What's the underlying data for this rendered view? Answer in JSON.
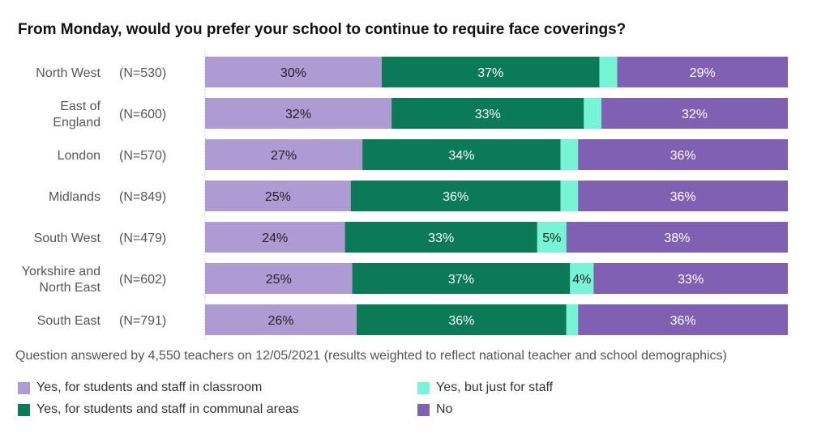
{
  "chart_data": {
    "type": "bar",
    "orientation": "horizontal-stacked-100",
    "title": "From Monday, would you prefer your school to continue to require face coverings?",
    "categories": [
      "North West",
      "East of England",
      "London",
      "Midlands",
      "South West",
      "Yorkshire and North East",
      "South East"
    ],
    "category_lines": [
      [
        "North West"
      ],
      [
        "East of",
        "England"
      ],
      [
        "London"
      ],
      [
        "Midlands"
      ],
      [
        "South West"
      ],
      [
        "Yorkshire and",
        "North East"
      ],
      [
        "South East"
      ]
    ],
    "n_labels": [
      "(N=530)",
      "(N=600)",
      "(N=570)",
      "(N=849)",
      "(N=479)",
      "(N=602)",
      "(N=791)"
    ],
    "series": [
      {
        "name": "Yes, for students and staff in classroom",
        "color": "#ae9bd4",
        "text_color": "#222",
        "values": [
          30,
          32,
          27,
          25,
          24,
          25,
          26
        ],
        "labels": [
          "30%",
          "32%",
          "27%",
          "25%",
          "24%",
          "25%",
          "26%"
        ]
      },
      {
        "name": "Yes, for students and staff in communal areas",
        "color": "#0b7a57",
        "text_color": "#fff",
        "values": [
          37,
          33,
          34,
          36,
          33,
          37,
          36
        ],
        "labels": [
          "37%",
          "33%",
          "34%",
          "36%",
          "33%",
          "37%",
          "36%"
        ]
      },
      {
        "name": "Yes, but just for staff",
        "color": "#76f5d6",
        "text_color": "#222",
        "values": [
          3,
          3,
          3,
          3,
          5,
          4,
          2
        ],
        "labels": [
          "",
          "",
          "",
          "",
          "5%",
          "4%",
          ""
        ]
      },
      {
        "name": "No",
        "color": "#7f60b3",
        "text_color": "#fff",
        "values": [
          29,
          32,
          36,
          36,
          38,
          33,
          36
        ],
        "labels": [
          "29%",
          "32%",
          "36%",
          "36%",
          "38%",
          "33%",
          "36%"
        ]
      }
    ],
    "xlim": [
      0,
      100
    ],
    "legend_position": "bottom",
    "note": "Question answered by 4,550 teachers on 12/05/2021 (results weighted to reflect national teacher and school demographics)"
  }
}
